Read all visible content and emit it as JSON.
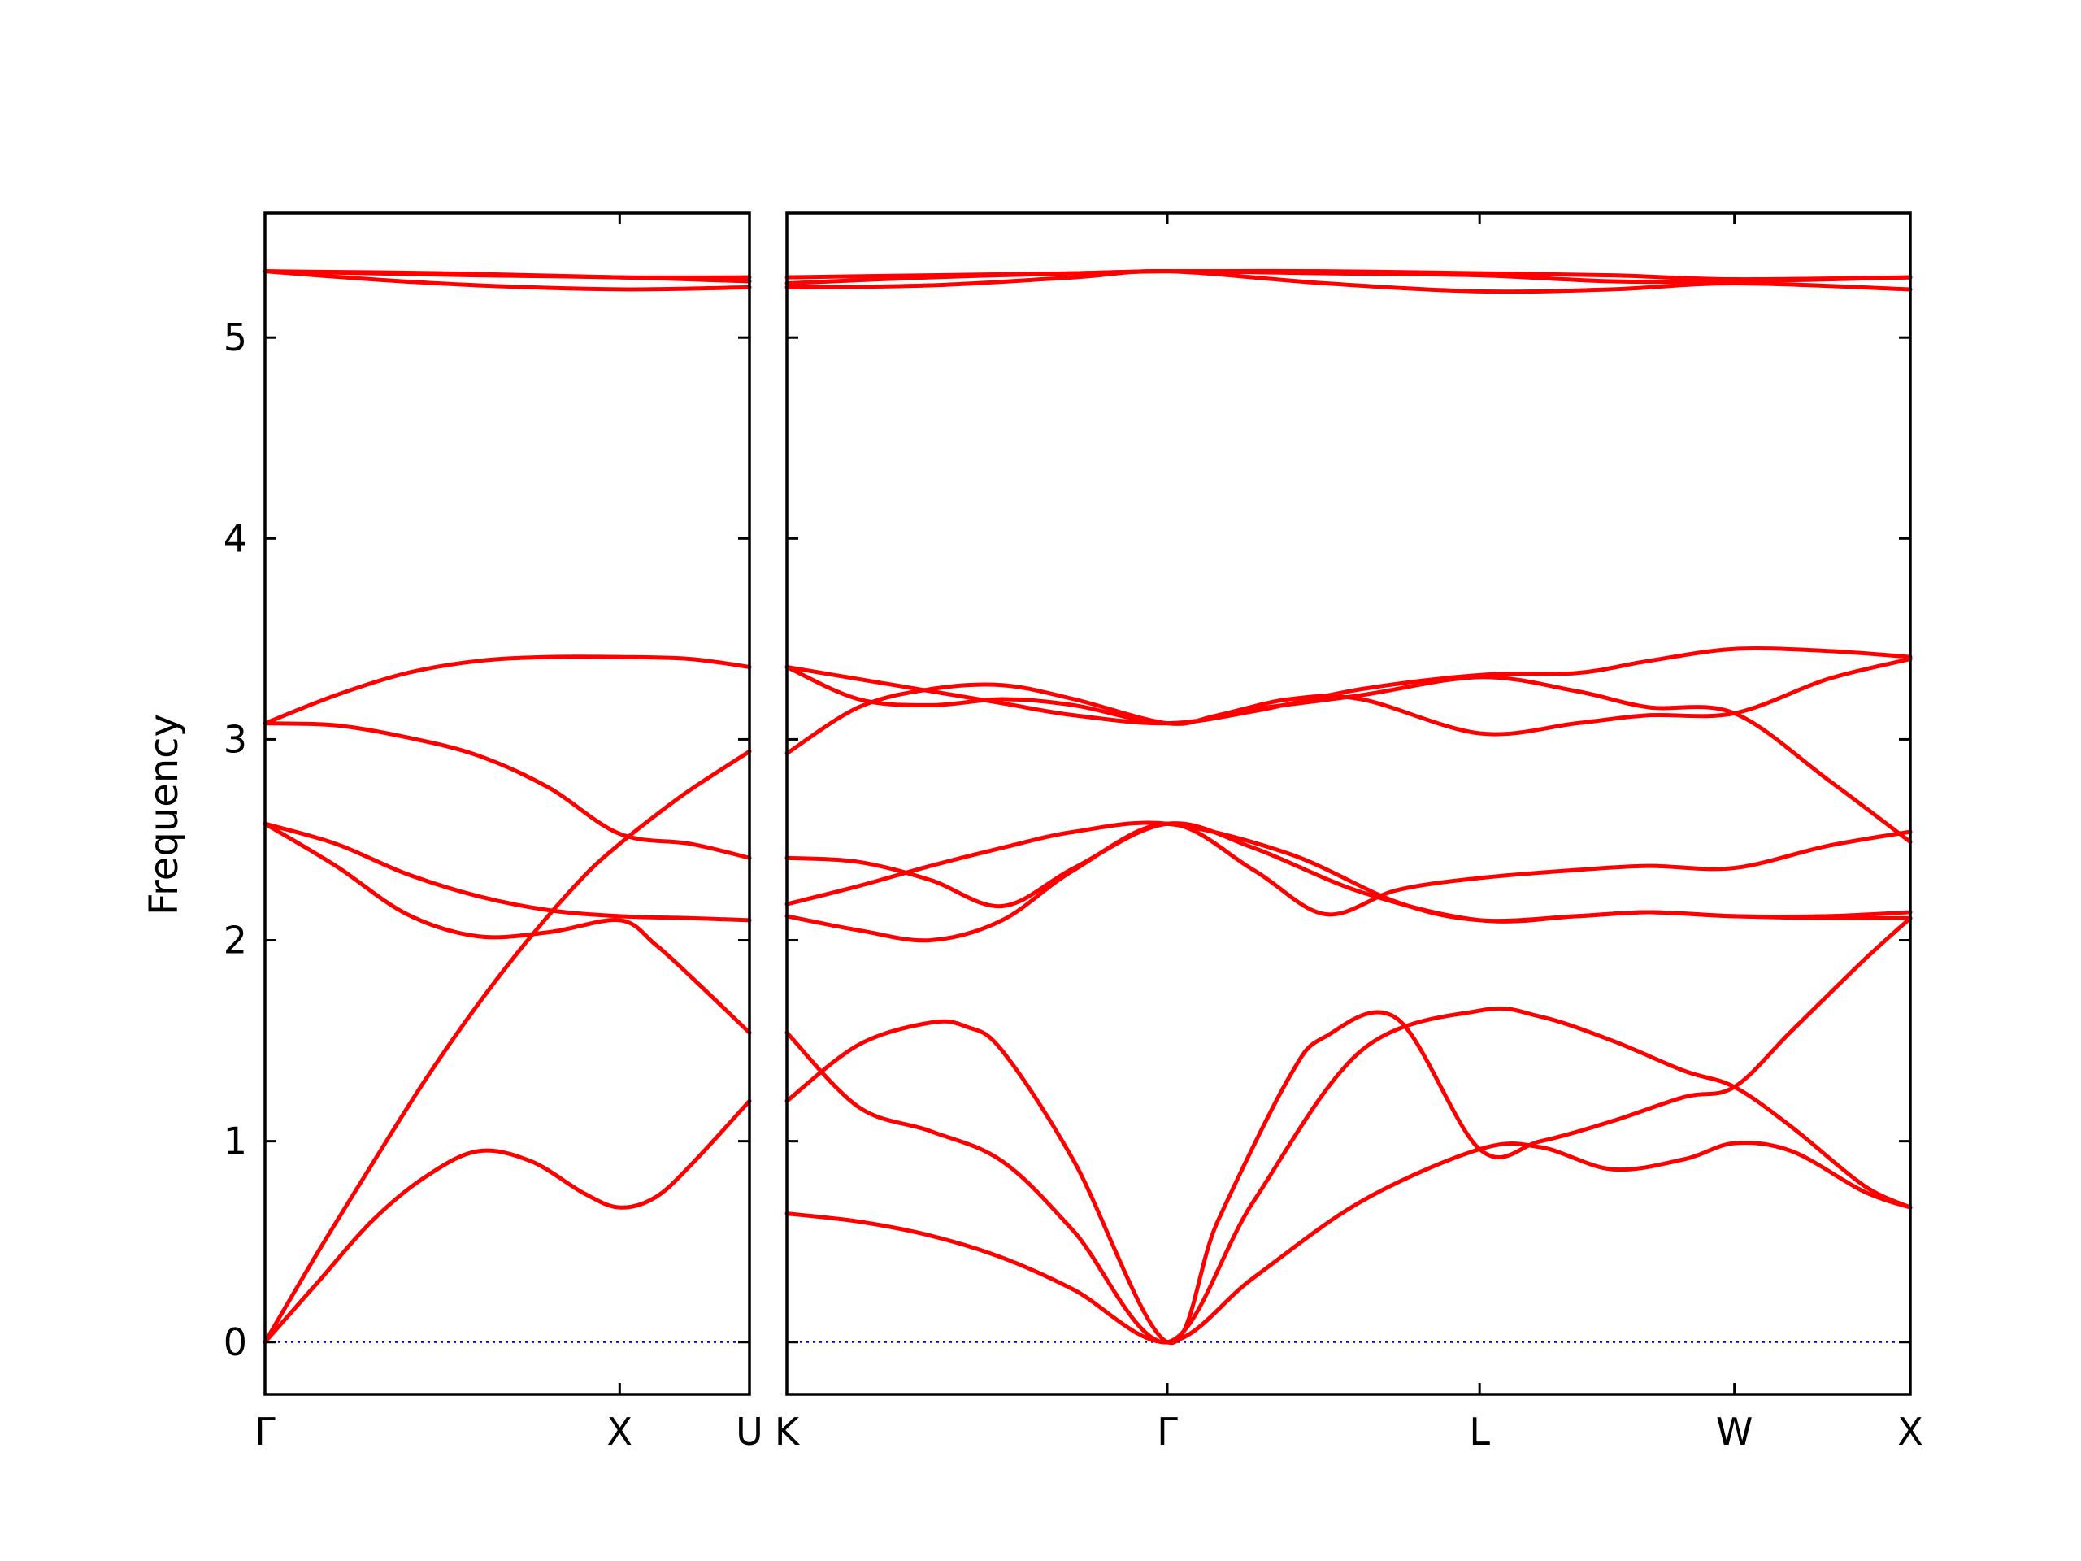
{
  "chart_data": {
    "type": "line",
    "ylabel": "Frequency",
    "ylim": [
      -0.26,
      5.62
    ],
    "yticks": [
      0,
      1,
      2,
      3,
      4,
      5
    ],
    "colors": {
      "bands": "#ff0000",
      "zero_line": "#0000cc",
      "frame": "#000000"
    },
    "grid": false,
    "panels": [
      {
        "name": "Γ-X-U",
        "xlim": [
          0,
          1.366
        ],
        "xticks": [
          {
            "x": 0,
            "label": "Γ"
          },
          {
            "x": 1.0,
            "label": "X"
          },
          {
            "x": 1.366,
            "label": "U"
          }
        ],
        "bands": [
          {
            "x": [
              0,
              0.15,
              0.3,
              0.45,
              0.6,
              0.75,
              0.9,
              1.0,
              1.1,
              1.2,
              1.366
            ],
            "y": [
              0,
              0.3,
              0.6,
              0.82,
              0.95,
              0.9,
              0.74,
              0.67,
              0.72,
              0.88,
              1.2
            ]
          },
          {
            "x": [
              0,
              0.15,
              0.3,
              0.45,
              0.6,
              0.75,
              0.9,
              1.0,
              1.1,
              1.2,
              1.366
            ],
            "y": [
              0,
              0.45,
              0.88,
              1.3,
              1.68,
              2.02,
              2.32,
              2.48,
              2.62,
              2.75,
              2.94
            ]
          },
          {
            "x": [
              0,
              0.2,
              0.4,
              0.6,
              0.8,
              1.0,
              1.1,
              1.2,
              1.366
            ],
            "y": [
              2.58,
              2.37,
              2.13,
              2.02,
              2.04,
              2.1,
              1.98,
              1.82,
              1.54
            ]
          },
          {
            "x": [
              0,
              0.2,
              0.4,
              0.6,
              0.8,
              1.0,
              1.2,
              1.366
            ],
            "y": [
              2.58,
              2.48,
              2.33,
              2.22,
              2.15,
              2.12,
              2.11,
              2.1
            ]
          },
          {
            "x": [
              0,
              0.2,
              0.4,
              0.6,
              0.8,
              1.0,
              1.2,
              1.366
            ],
            "y": [
              3.08,
              3.07,
              3.01,
              2.92,
              2.76,
              2.53,
              2.48,
              2.41
            ]
          },
          {
            "x": [
              0,
              0.2,
              0.4,
              0.6,
              0.8,
              1.0,
              1.2,
              1.366
            ],
            "y": [
              3.08,
              3.22,
              3.33,
              3.39,
              3.41,
              3.41,
              3.4,
              3.36
            ]
          },
          {
            "x": [
              0,
              0.3,
              0.6,
              1.0,
              1.366
            ],
            "y": [
              5.33,
              5.29,
              5.26,
              5.24,
              5.25
            ]
          },
          {
            "x": [
              0,
              0.3,
              0.6,
              1.0,
              1.366
            ],
            "y": [
              5.33,
              5.32,
              5.31,
              5.3,
              5.28
            ]
          },
          {
            "x": [
              0,
              0.5,
              1.0,
              1.366
            ],
            "y": [
              5.33,
              5.32,
              5.3,
              5.3
            ]
          }
        ]
      },
      {
        "name": "K-Γ-L-W-X",
        "xlim": [
          0,
          3.13
        ],
        "xticks": [
          {
            "x": 0,
            "label": "K"
          },
          {
            "x": 1.06,
            "label": "Γ"
          },
          {
            "x": 1.93,
            "label": "L"
          },
          {
            "x": 2.64,
            "label": "W"
          },
          {
            "x": 3.13,
            "label": "X"
          }
        ],
        "bands": [
          {
            "x": [
              0,
              0.2,
              0.4,
              0.6,
              0.8,
              1.06,
              1.3,
              1.6,
              1.93,
              2.1,
              2.3,
              2.5,
              2.64,
              2.8,
              3.0,
              3.13
            ],
            "y": [
              0.64,
              0.6,
              0.53,
              0.42,
              0.26,
              0,
              0.32,
              0.7,
              0.96,
              0.97,
              0.86,
              0.91,
              0.99,
              0.95,
              0.75,
              0.67
            ]
          },
          {
            "x": [
              0,
              0.2,
              0.4,
              0.6,
              0.8,
              1.06,
              1.3,
              1.6,
              1.93,
              2.1,
              2.3,
              2.5,
              2.64,
              2.8,
              3.0,
              3.13
            ],
            "y": [
              1.54,
              1.17,
              1.05,
              0.9,
              0.55,
              0,
              0.7,
              1.45,
              1.65,
              1.62,
              1.5,
              1.35,
              1.27,
              1.07,
              0.78,
              0.67
            ]
          },
          {
            "x": [
              0,
              0.2,
              0.4,
              0.5,
              0.6,
              0.8,
              1.06,
              1.2,
              1.4,
              1.5,
              1.7,
              1.93,
              2.1,
              2.3,
              2.5,
              2.64,
              2.8,
              3.0,
              3.13
            ],
            "y": [
              1.2,
              1.48,
              1.59,
              1.57,
              1.45,
              0.9,
              0,
              0.6,
              1.32,
              1.52,
              1.61,
              0.96,
              1.0,
              1.1,
              1.22,
              1.27,
              1.55,
              1.9,
              2.11
            ]
          },
          {
            "x": [
              0,
              0.2,
              0.4,
              0.6,
              0.8,
              1.06,
              1.3,
              1.5,
              1.7,
              1.93,
              2.2,
              2.4,
              2.64,
              2.9,
              3.13
            ],
            "y": [
              2.12,
              2.05,
              2.0,
              2.1,
              2.35,
              2.58,
              2.35,
              2.13,
              2.25,
              2.31,
              2.35,
              2.37,
              2.36,
              2.47,
              2.54
            ]
          },
          {
            "x": [
              0,
              0.2,
              0.4,
              0.6,
              0.8,
              1.06,
              1.3,
              1.6,
              1.93,
              2.2,
              2.4,
              2.64,
              2.9,
              3.13
            ],
            "y": [
              2.41,
              2.39,
              2.3,
              2.17,
              2.36,
              2.58,
              2.46,
              2.24,
              2.1,
              2.12,
              2.14,
              2.12,
              2.12,
              2.14
            ]
          },
          {
            "x": [
              0,
              0.2,
              0.4,
              0.6,
              0.8,
              1.06,
              1.4,
              1.7,
              1.93,
              2.2,
              2.4,
              2.64,
              2.9,
              3.13
            ],
            "y": [
              2.18,
              2.27,
              2.37,
              2.46,
              2.54,
              2.58,
              2.43,
              2.19,
              2.1,
              2.12,
              2.14,
              2.12,
              2.11,
              2.11
            ]
          },
          {
            "x": [
              0,
              0.2,
              0.4,
              0.6,
              0.8,
              1.06,
              1.3,
              1.6,
              1.93,
              2.2,
              2.4,
              2.64,
              2.9,
              3.13
            ],
            "y": [
              3.36,
              3.2,
              3.17,
              3.2,
              3.17,
              3.08,
              3.15,
              3.22,
              3.31,
              3.24,
              3.16,
              3.13,
              2.8,
              2.49
            ]
          },
          {
            "x": [
              0,
              0.2,
              0.4,
              0.6,
              0.8,
              1.06,
              1.2,
              1.4,
              1.6,
              1.93,
              2.2,
              2.4,
              2.64,
              2.9,
              3.13
            ],
            "y": [
              2.93,
              3.16,
              3.25,
              3.27,
              3.2,
              3.08,
              3.12,
              3.2,
              3.2,
              3.03,
              3.08,
              3.12,
              3.13,
              3.3,
              3.4
            ]
          },
          {
            "x": [
              0,
              0.2,
              0.4,
              0.6,
              0.8,
              1.06,
              1.3,
              1.6,
              1.93,
              2.2,
              2.4,
              2.64,
              2.9,
              3.13
            ],
            "y": [
              3.36,
              3.3,
              3.24,
              3.18,
              3.12,
              3.08,
              3.14,
              3.25,
              3.32,
              3.33,
              3.39,
              3.45,
              3.44,
              3.41
            ]
          },
          {
            "x": [
              0,
              0.4,
              0.8,
              1.06,
              1.5,
              1.93,
              2.3,
              2.64,
              3.13
            ],
            "y": [
              5.27,
              5.3,
              5.32,
              5.33,
              5.33,
              5.32,
              5.31,
              5.29,
              5.3
            ]
          },
          {
            "x": [
              0,
              0.4,
              0.8,
              1.06,
              1.5,
              1.93,
              2.3,
              2.64,
              3.13
            ],
            "y": [
              5.25,
              5.26,
              5.3,
              5.33,
              5.27,
              5.23,
              5.24,
              5.27,
              5.24
            ]
          },
          {
            "x": [
              0,
              0.4,
              0.8,
              1.06,
              1.5,
              1.93,
              2.3,
              2.64,
              3.13
            ],
            "y": [
              5.3,
              5.31,
              5.32,
              5.33,
              5.32,
              5.31,
              5.28,
              5.28,
              5.3
            ]
          }
        ]
      }
    ]
  }
}
